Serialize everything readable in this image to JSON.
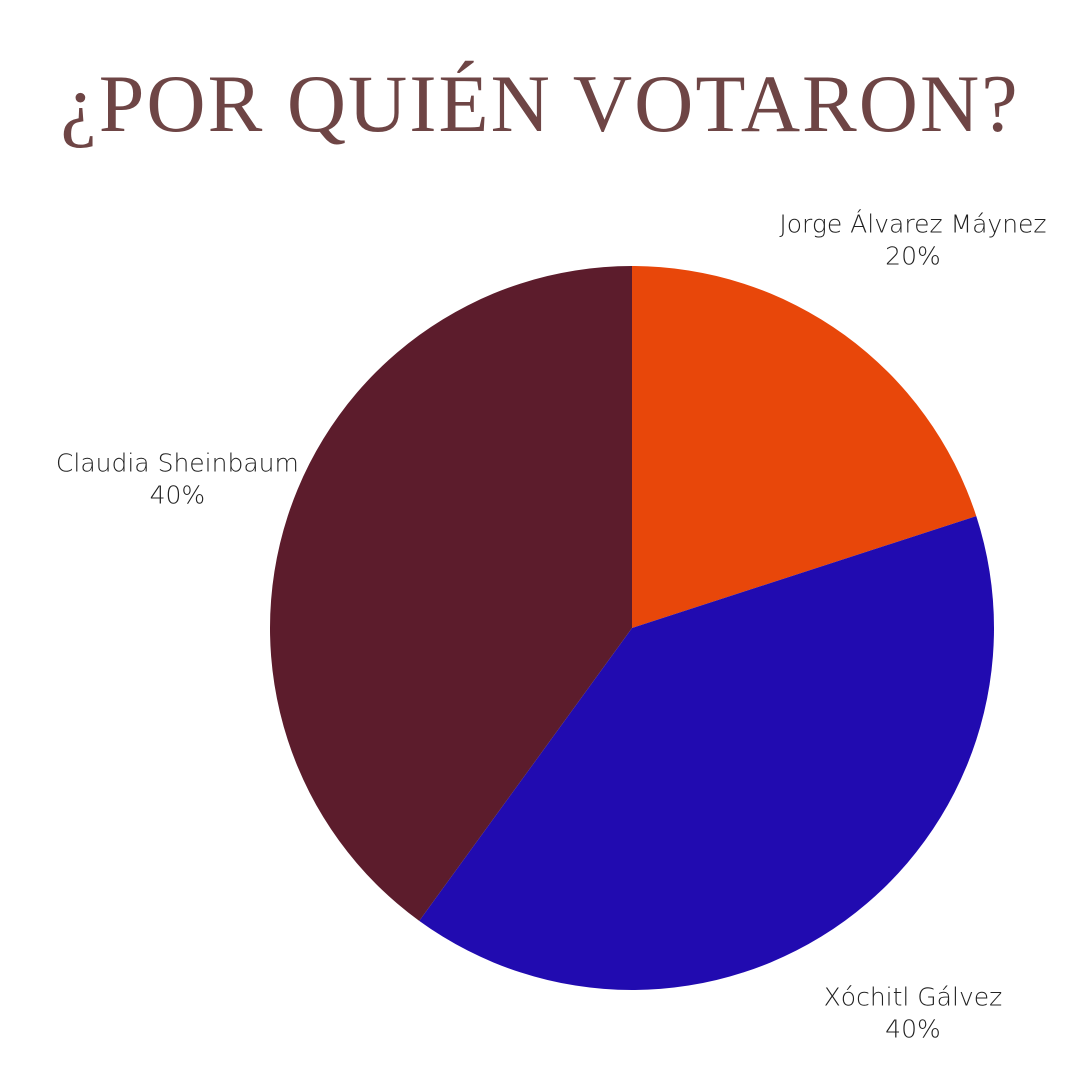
{
  "chart_data": {
    "type": "pie",
    "title": "¿POR QUIÉN VOTARON?",
    "categories": [
      "Jorge Álvarez Máynez",
      "Xóchitl Gálvez",
      "Claudia Sheinbaum"
    ],
    "values": [
      20,
      40,
      40
    ],
    "value_labels": [
      "20%",
      "40%",
      "40%"
    ],
    "colors": [
      "#e8470a",
      "#210bb0",
      "#5c1c2c"
    ]
  }
}
